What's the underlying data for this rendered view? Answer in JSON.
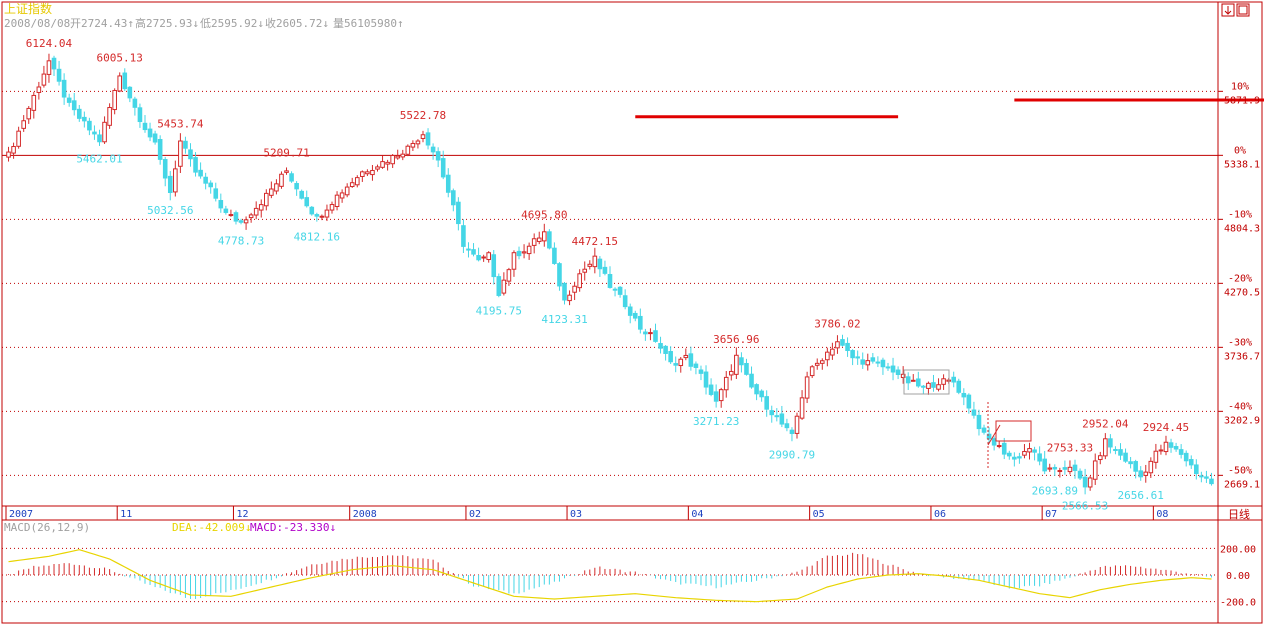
{
  "title": "上证指数",
  "info_bar": {
    "date": "2008/08/08",
    "open": "开2724.43↑",
    "high": "高2725.93↓",
    "low": "低2595.92↓",
    "close": "收2605.72↓",
    "volume": "量56105980↑"
  },
  "period_label": "日线",
  "colors": {
    "up": "#d42a2a",
    "down": "#45d6e6",
    "frame": "#c00000",
    "grid": "#c00000",
    "dea": "#e8d400",
    "macd_label": "#b000c8",
    "red_marker": "#e00000"
  },
  "chart_data": [
    {
      "type": "candlestick",
      "title": "上证指数",
      "x_axis_labels": [
        "2007",
        "11",
        "12",
        "2008",
        "02",
        "03",
        "04",
        "05",
        "06",
        "07",
        "08"
      ],
      "y_axis": {
        "base": 5338.1,
        "percent_ticks": [
          "10%",
          "0%",
          "-10%",
          "-20%",
          "-30%",
          "-40%",
          "-50%"
        ],
        "price_ticks": [
          "5871.9",
          "5338.1",
          "4804.3",
          "4270.5",
          "3736.7",
          "3202.9",
          "2669.1"
        ],
        "range": [
          2480,
          6300
        ]
      },
      "peak_trough_labels": [
        {
          "text": "6124.04",
          "kind": "high",
          "index": 8
        },
        {
          "text": "6005.13",
          "kind": "high",
          "index": 22
        },
        {
          "text": "5462.01",
          "kind": "low",
          "index": 18
        },
        {
          "text": "5453.74",
          "kind": "high",
          "index": 34
        },
        {
          "text": "5032.56",
          "kind": "low",
          "index": 32
        },
        {
          "text": "5209.71",
          "kind": "high",
          "index": 55
        },
        {
          "text": "4778.73",
          "kind": "low",
          "index": 46
        },
        {
          "text": "4812.16",
          "kind": "low",
          "index": 61
        },
        {
          "text": "5522.78",
          "kind": "high",
          "index": 82
        },
        {
          "text": "4695.80",
          "kind": "high",
          "index": 106
        },
        {
          "text": "4195.75",
          "kind": "low",
          "index": 97
        },
        {
          "text": "4472.15",
          "kind": "high",
          "index": 116
        },
        {
          "text": "4123.31",
          "kind": "low",
          "index": 110
        },
        {
          "text": "3656.96",
          "kind": "high",
          "index": 144
        },
        {
          "text": "3271.23",
          "kind": "low",
          "index": 140
        },
        {
          "text": "2990.79",
          "kind": "low",
          "index": 155
        },
        {
          "text": "3786.02",
          "kind": "high",
          "index": 164
        },
        {
          "text": "2952.04",
          "kind": "high",
          "index": 217
        },
        {
          "text": "2753.33",
          "kind": "high",
          "index": 210
        },
        {
          "text": "2693.89",
          "kind": "low",
          "index": 207
        },
        {
          "text": "2566.53",
          "kind": "low",
          "index": 213
        },
        {
          "text": "2656.61",
          "kind": "low",
          "index": 224
        },
        {
          "text": "2924.45",
          "kind": "high",
          "index": 229
        }
      ],
      "anchor_points": [
        [
          0,
          5340
        ],
        [
          8,
          6124
        ],
        [
          12,
          5750
        ],
        [
          15,
          5600
        ],
        [
          18,
          5462
        ],
        [
          22,
          6005
        ],
        [
          26,
          5650
        ],
        [
          29,
          5420
        ],
        [
          32,
          5033
        ],
        [
          34,
          5453
        ],
        [
          37,
          5200
        ],
        [
          40,
          5050
        ],
        [
          43,
          4850
        ],
        [
          46,
          4779
        ],
        [
          50,
          4950
        ],
        [
          55,
          5210
        ],
        [
          58,
          5000
        ],
        [
          61,
          4812
        ],
        [
          65,
          5000
        ],
        [
          70,
          5200
        ],
        [
          75,
          5300
        ],
        [
          79,
          5400
        ],
        [
          82,
          5523
        ],
        [
          85,
          5300
        ],
        [
          88,
          4900
        ],
        [
          90,
          4600
        ],
        [
          93,
          4450
        ],
        [
          95,
          4500
        ],
        [
          97,
          4196
        ],
        [
          100,
          4500
        ],
        [
          103,
          4580
        ],
        [
          106,
          4696
        ],
        [
          110,
          4123
        ],
        [
          113,
          4350
        ],
        [
          116,
          4472
        ],
        [
          119,
          4250
        ],
        [
          122,
          4100
        ],
        [
          125,
          3900
        ],
        [
          128,
          3800
        ],
        [
          131,
          3600
        ],
        [
          134,
          3650
        ],
        [
          137,
          3500
        ],
        [
          140,
          3271
        ],
        [
          144,
          3657
        ],
        [
          147,
          3400
        ],
        [
          151,
          3200
        ],
        [
          155,
          2991
        ],
        [
          158,
          3500
        ],
        [
          161,
          3650
        ],
        [
          164,
          3786
        ],
        [
          167,
          3650
        ],
        [
          171,
          3600
        ],
        [
          175,
          3550
        ],
        [
          178,
          3450
        ],
        [
          181,
          3400
        ],
        [
          184,
          3450
        ],
        [
          187,
          3450
        ],
        [
          190,
          3250
        ],
        [
          193,
          3000
        ],
        [
          196,
          2900
        ],
        [
          199,
          2800
        ],
        [
          202,
          2900
        ],
        [
          205,
          2720
        ],
        [
          207,
          2694
        ],
        [
          210,
          2753
        ],
        [
          213,
          2567
        ],
        [
          217,
          2952
        ],
        [
          221,
          2800
        ],
        [
          224,
          2657
        ],
        [
          227,
          2850
        ],
        [
          229,
          2924
        ],
        [
          232,
          2850
        ],
        [
          235,
          2700
        ],
        [
          238,
          2606
        ]
      ],
      "red_markers": [
        {
          "from_index": 124,
          "to_index": 176,
          "y_value": 5660
        },
        {
          "from_index": 199,
          "to_index": 249,
          "y_value": 5800
        }
      ]
    },
    {
      "type": "line",
      "title": "MACD(26,12,9)",
      "legend": [
        {
          "name": "DEA",
          "value": "DEA:-42.009↓"
        },
        {
          "name": "MACD",
          "value": "MACD:-23.330↓"
        }
      ],
      "y_axis": {
        "ticks": [
          "200.00",
          "0.00",
          "-200.0"
        ],
        "range": [
          -300,
          300
        ]
      },
      "macd_hist_anchors": [
        [
          0,
          0
        ],
        [
          5,
          60
        ],
        [
          12,
          90
        ],
        [
          20,
          40
        ],
        [
          28,
          -80
        ],
        [
          36,
          -180
        ],
        [
          44,
          -120
        ],
        [
          52,
          -30
        ],
        [
          60,
          80
        ],
        [
          68,
          130
        ],
        [
          76,
          150
        ],
        [
          84,
          110
        ],
        [
          92,
          -80
        ],
        [
          100,
          -140
        ],
        [
          108,
          -60
        ],
        [
          116,
          60
        ],
        [
          124,
          20
        ],
        [
          132,
          -60
        ],
        [
          140,
          -90
        ],
        [
          148,
          -40
        ],
        [
          156,
          20
        ],
        [
          162,
          140
        ],
        [
          168,
          160
        ],
        [
          174,
          80
        ],
        [
          180,
          10
        ],
        [
          186,
          -20
        ],
        [
          192,
          -40
        ],
        [
          198,
          -100
        ],
        [
          204,
          -80
        ],
        [
          210,
          -20
        ],
        [
          216,
          60
        ],
        [
          222,
          70
        ],
        [
          228,
          40
        ],
        [
          234,
          10
        ],
        [
          238,
          -20
        ]
      ],
      "dea_anchors": [
        [
          0,
          100
        ],
        [
          8,
          140
        ],
        [
          14,
          190
        ],
        [
          20,
          120
        ],
        [
          28,
          -40
        ],
        [
          36,
          -150
        ],
        [
          44,
          -160
        ],
        [
          52,
          -90
        ],
        [
          60,
          -20
        ],
        [
          68,
          40
        ],
        [
          76,
          70
        ],
        [
          84,
          40
        ],
        [
          92,
          -60
        ],
        [
          100,
          -160
        ],
        [
          108,
          -180
        ],
        [
          116,
          -160
        ],
        [
          124,
          -140
        ],
        [
          132,
          -170
        ],
        [
          140,
          -190
        ],
        [
          148,
          -200
        ],
        [
          156,
          -180
        ],
        [
          162,
          -90
        ],
        [
          168,
          -30
        ],
        [
          174,
          0
        ],
        [
          180,
          10
        ],
        [
          186,
          -10
        ],
        [
          192,
          -40
        ],
        [
          198,
          -90
        ],
        [
          204,
          -140
        ],
        [
          210,
          -170
        ],
        [
          216,
          -110
        ],
        [
          222,
          -70
        ],
        [
          228,
          -40
        ],
        [
          234,
          -20
        ],
        [
          238,
          -30
        ]
      ]
    }
  ]
}
